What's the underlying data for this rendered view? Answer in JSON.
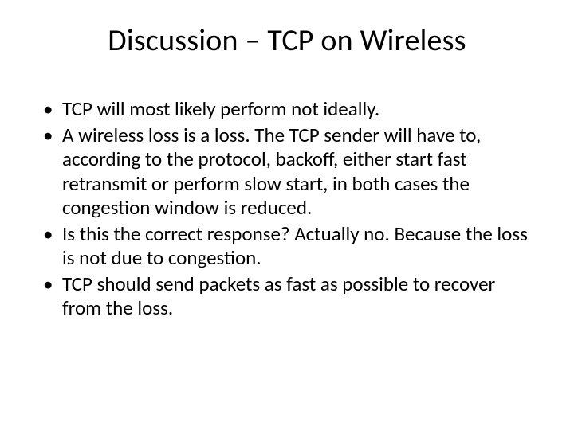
{
  "slide": {
    "title": "Discussion – TCP on Wireless",
    "bullets": [
      "TCP will most likely perform not ideally.",
      "A wireless loss is a loss. The TCP sender will have to, according to the protocol, backoff, either start fast retransmit or perform slow start, in both cases the congestion window is reduced.",
      "Is this the correct response? Actually no. Because the loss is not due to congestion.",
      "TCP should send packets as fast as possible to recover from the loss."
    ]
  },
  "colors": {
    "background": "#ffffff",
    "text": "#000000"
  },
  "typography": {
    "title_fontsize": 38,
    "body_fontsize": 25,
    "font_family": "Calibri"
  }
}
